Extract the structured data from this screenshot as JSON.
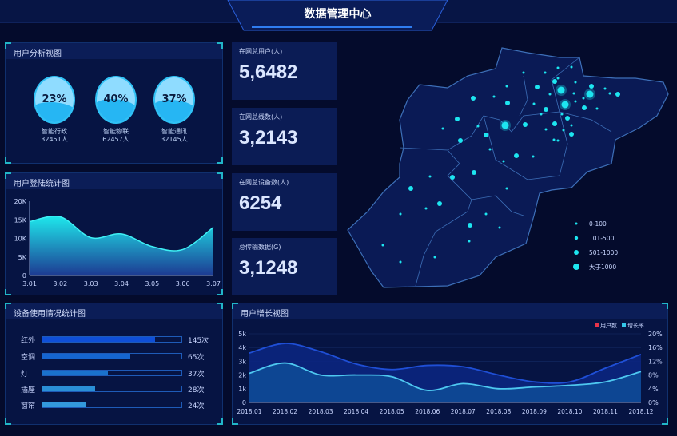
{
  "header": {
    "title": "数据管理中心"
  },
  "user_analysis": {
    "title": "用户分析视图",
    "items": [
      {
        "percent": "23%",
        "level": 0.23,
        "name": "智能行政",
        "count": "32451人"
      },
      {
        "percent": "40%",
        "level": 0.4,
        "name": "智能物联",
        "count": "62457人"
      },
      {
        "percent": "37%",
        "level": 0.37,
        "name": "智能通讯",
        "count": "32145人"
      }
    ]
  },
  "login_chart": {
    "title": "用户登陆统计图"
  },
  "device_usage": {
    "title": "设备使用情况统计图",
    "items": [
      {
        "name": "红外",
        "count": "145次",
        "fill_percent": 81,
        "color": "#0f4fd8"
      },
      {
        "name": "空调",
        "count": "65次",
        "fill_percent": 63,
        "color": "#1565d0"
      },
      {
        "name": "灯",
        "count": "37次",
        "fill_percent": 47,
        "color": "#1a72cc"
      },
      {
        "name": "插座",
        "count": "28次",
        "fill_percent": 38,
        "color": "#2a8fd6"
      },
      {
        "name": "窗帘",
        "count": "24次",
        "fill_percent": 31,
        "color": "#3399dc"
      }
    ]
  },
  "stats": [
    {
      "label": "在网总用户(人)",
      "value": "5,6482"
    },
    {
      "label": "在网总线数(人)",
      "value": "3,2143"
    },
    {
      "label": "在网总设备数(人)",
      "value": "6254"
    },
    {
      "label": "总传输数据(G)",
      "value": "3,1248"
    }
  ],
  "map": {
    "legend": [
      "0-100",
      "101-500",
      "501-1000",
      "大于1000"
    ],
    "dot_color": "#1de5f0"
  },
  "growth_chart": {
    "title": "用户增长视图"
  },
  "chart_data": [
    {
      "type": "area",
      "title": "用户登陆统计图",
      "x": [
        "3.01",
        "3.02",
        "3.03",
        "3.04",
        "3.05",
        "3.06",
        "3.07"
      ],
      "values": [
        14500,
        15800,
        10200,
        11200,
        7800,
        7000,
        13000
      ],
      "ylim": [
        0,
        20000
      ],
      "yticks": [
        "0",
        "5K",
        "10K",
        "15K",
        "20K"
      ],
      "color_top": "#1ee8ec",
      "color_bottom": "#1d3a92"
    },
    {
      "type": "area",
      "title": "用户增长视图",
      "x": [
        "2018.01",
        "2018.02",
        "2018.03",
        "2018.04",
        "2018.05",
        "2018.06",
        "2018.07",
        "2018.08",
        "2018.09",
        "2018.10",
        "2018.11",
        "2018.12"
      ],
      "yticks_left": [
        "0",
        "1k",
        "2k",
        "3k",
        "4k",
        "5k"
      ],
      "yticks_right": [
        "0%",
        "4%",
        "8%",
        "12%",
        "16%",
        "20%"
      ],
      "ylim_left": [
        0,
        5000
      ],
      "ylim_right": [
        0,
        20
      ],
      "legend_position": "top-right",
      "series": [
        {
          "name": "用户数",
          "axis": "left",
          "legend_color": "#e8334a",
          "line_color": "#1f4fd6",
          "values": [
            3600,
            4300,
            3700,
            2800,
            2400,
            2700,
            2600,
            2000,
            1500,
            1500,
            2500,
            3500
          ]
        },
        {
          "name": "增长率",
          "axis": "right",
          "legend_color": "#34c6e8",
          "line_color": "#4ec8f0",
          "values": [
            8.5,
            11.5,
            8,
            8,
            7.5,
            3.5,
            5.5,
            4,
            4.5,
            5,
            6,
            9
          ]
        }
      ]
    }
  ]
}
